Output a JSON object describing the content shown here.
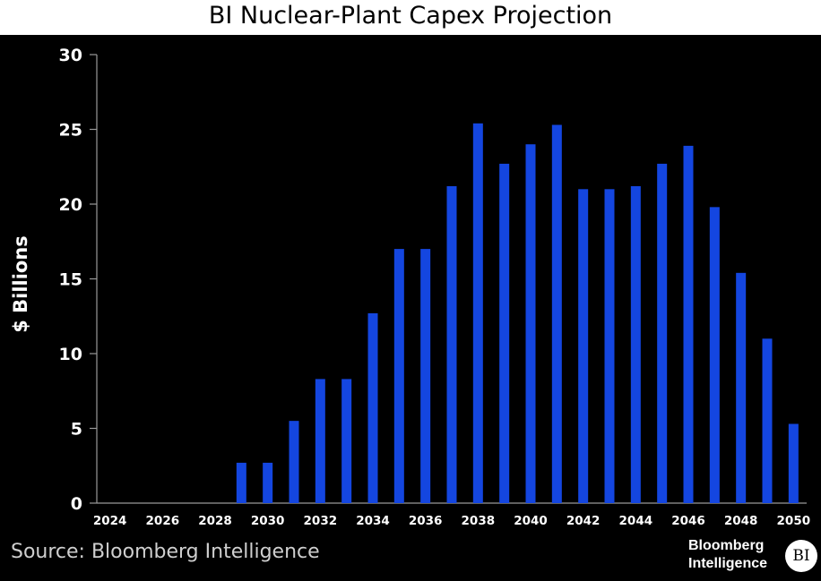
{
  "chart_data": {
    "type": "bar",
    "title": "BI Nuclear-Plant Capex Projection",
    "ylabel": "$ Billions",
    "xlabel": "",
    "ylim": [
      0,
      30
    ],
    "yticks": [
      0,
      5,
      10,
      15,
      20,
      25,
      30
    ],
    "categories": [
      2024,
      2025,
      2026,
      2027,
      2028,
      2029,
      2030,
      2031,
      2032,
      2033,
      2034,
      2035,
      2036,
      2037,
      2038,
      2039,
      2040,
      2041,
      2042,
      2043,
      2044,
      2045,
      2046,
      2047,
      2048,
      2049,
      2050
    ],
    "xtick_labels": [
      "2024",
      "2026",
      "2028",
      "2030",
      "2032",
      "2034",
      "2036",
      "2038",
      "2040",
      "2042",
      "2044",
      "2046",
      "2048",
      "2050"
    ],
    "values": [
      0,
      0,
      0,
      0,
      0,
      2.7,
      2.7,
      5.5,
      8.3,
      8.3,
      12.7,
      17,
      17,
      21.2,
      25.4,
      22.7,
      24,
      25.3,
      21,
      21,
      21.2,
      22.7,
      23.9,
      19.8,
      15.4,
      11,
      5.3
    ],
    "bar_color": "#1446e0",
    "background": "#000000",
    "grid": false,
    "legend": "none"
  },
  "footer": {
    "source": "Source: Bloomberg Intelligence",
    "logo_line1": "Bloomberg",
    "logo_line2": "Intelligence",
    "logo_badge": "BI"
  }
}
